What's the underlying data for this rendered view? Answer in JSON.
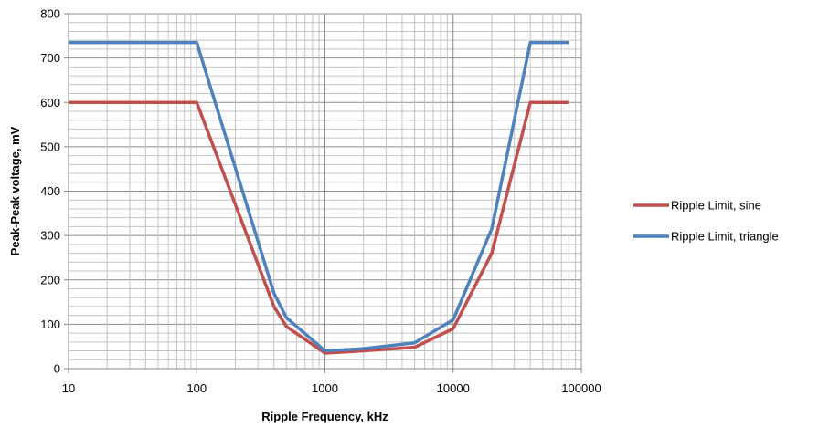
{
  "chart_data": {
    "type": "line",
    "title": "",
    "xlabel": "Ripple Frequency, kHz",
    "ylabel": "Peak-Peak voltage, mV",
    "x_scale": "log",
    "xlim": [
      10,
      100000
    ],
    "ylim": [
      0,
      800
    ],
    "x_ticks": [
      10,
      100,
      1000,
      10000,
      100000
    ],
    "x_tick_labels": [
      "10",
      "100",
      "1000",
      "10000",
      "100000"
    ],
    "y_ticks": [
      0,
      100,
      200,
      300,
      400,
      500,
      600,
      700,
      800
    ],
    "y_tick_labels": [
      "0",
      "100",
      "200",
      "300",
      "400",
      "500",
      "600",
      "700",
      "800"
    ],
    "grid": true,
    "legend_position": "right",
    "series": [
      {
        "name": "Ripple Limit, sine",
        "color": "#c0504d",
        "x": [
          10,
          100,
          400,
          500,
          1000,
          2000,
          5000,
          10000,
          20000,
          40000,
          80000
        ],
        "y": [
          600,
          600,
          140,
          95,
          35,
          40,
          48,
          90,
          260,
          600,
          600
        ]
      },
      {
        "name": "Ripple Limit, triangle",
        "color": "#4f81bd",
        "x": [
          10,
          100,
          400,
          500,
          1000,
          2000,
          5000,
          10000,
          20000,
          40000,
          80000
        ],
        "y": [
          735,
          735,
          170,
          115,
          40,
          45,
          58,
          110,
          315,
          735,
          735
        ]
      }
    ]
  }
}
